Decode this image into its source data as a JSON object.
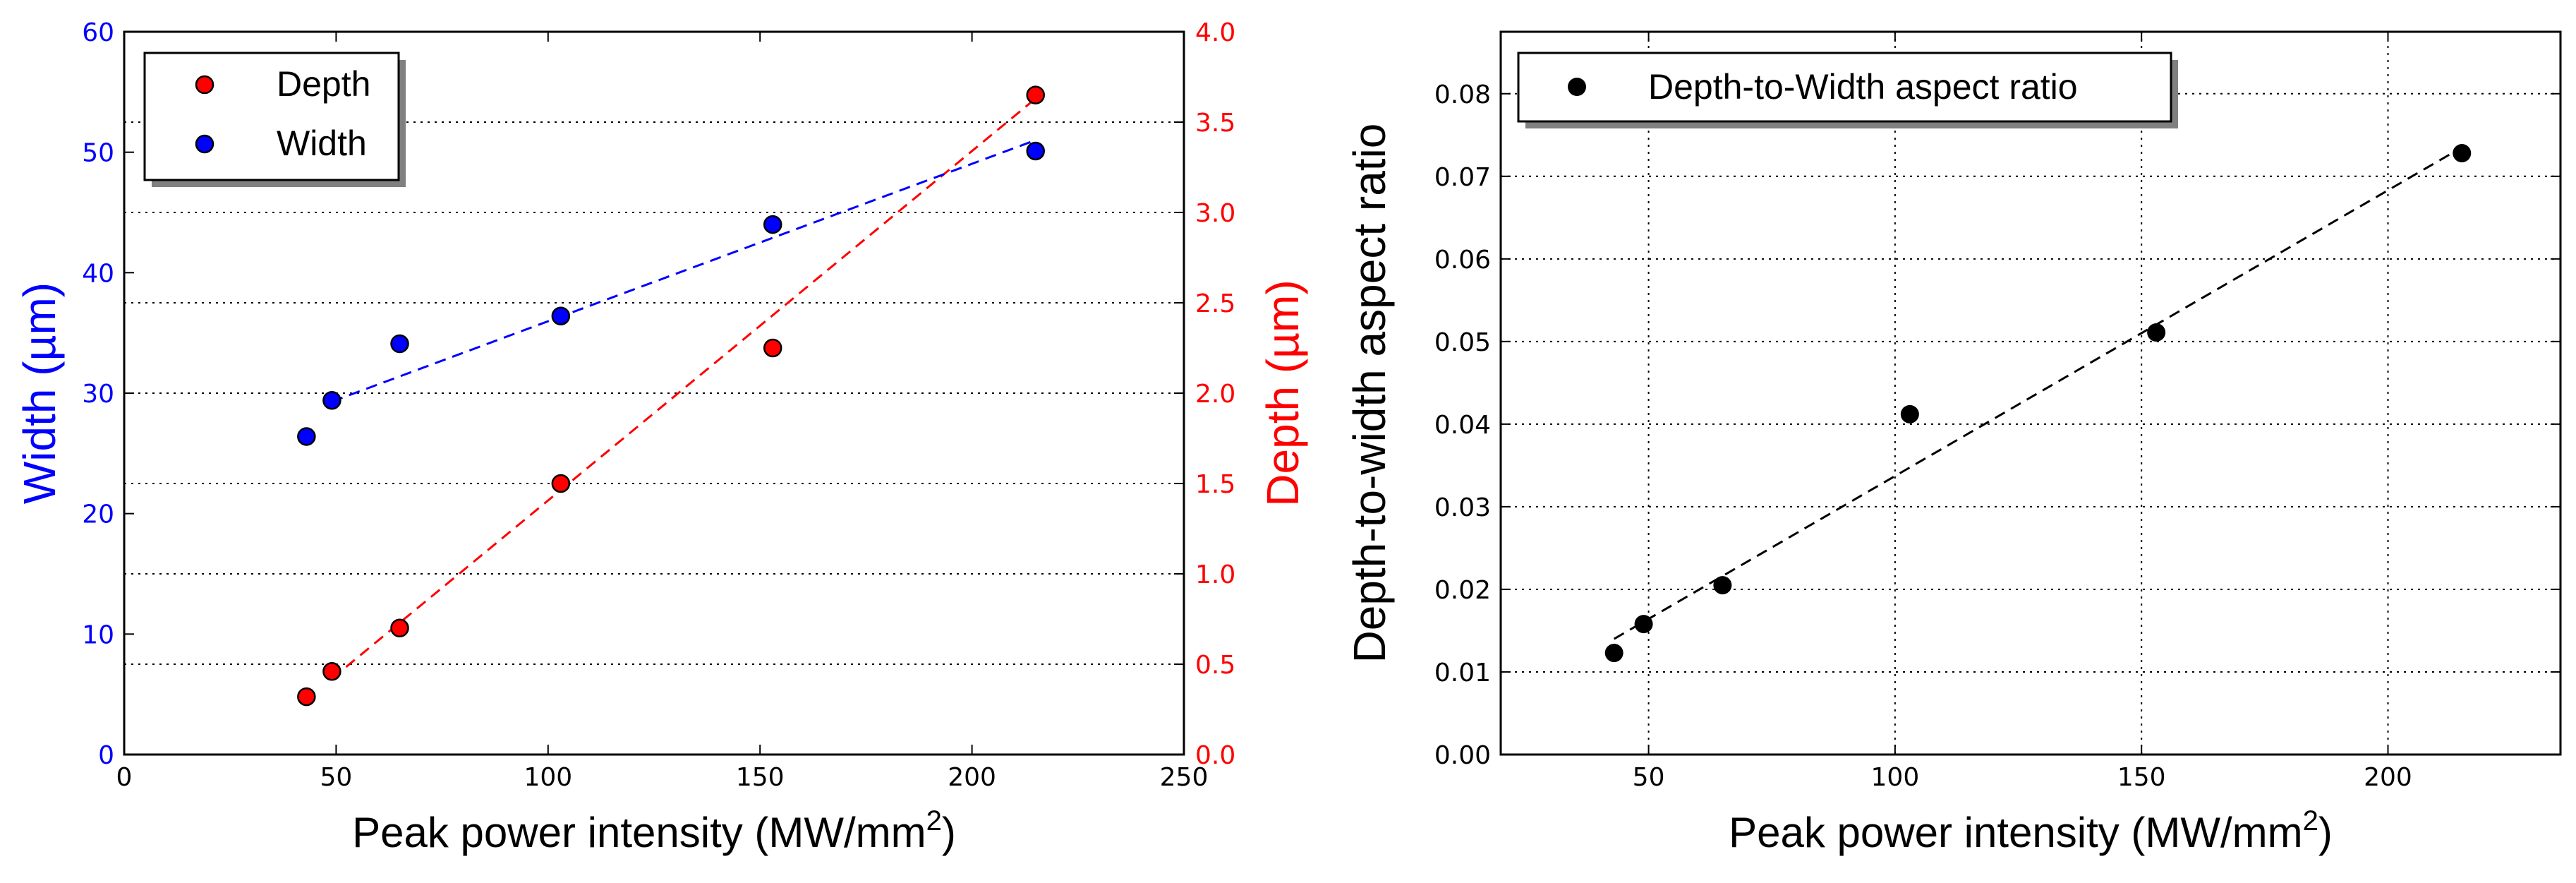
{
  "chart_data": [
    {
      "type": "scatter",
      "title": "",
      "xlabel": "Peak power intensity (MW/mm",
      "xlabel_sup": "2",
      "xlabel_close": ")",
      "ylabel": "Width (µm)",
      "ylabel_right": "Depth (µm)",
      "xlim": [
        0,
        250
      ],
      "ylim": [
        0,
        60
      ],
      "ylim_right": [
        0,
        4.0
      ],
      "x_ticks": [
        "0",
        "50",
        "100",
        "150",
        "200",
        "250"
      ],
      "y_ticks": [
        "0",
        "10",
        "20",
        "30",
        "40",
        "50",
        "60"
      ],
      "y_ticks_right": [
        "0.0",
        "0.5",
        "1.0",
        "1.5",
        "2.0",
        "2.5",
        "3.0",
        "3.5",
        "4.0"
      ],
      "grid": "horizontal dotted at right-axis ticks",
      "legend_position": "top-left",
      "left_axis_color": "#0000ff",
      "right_axis_color": "#ff0000",
      "series": [
        {
          "name": "Depth",
          "axis": "right",
          "color": "#ff0000",
          "x": [
            43,
            49,
            65,
            103,
            153,
            215
          ],
          "y": [
            0.32,
            0.46,
            0.7,
            1.5,
            2.25,
            3.65
          ],
          "fit": [
            [
              49,
              0.42
            ],
            [
              215,
              3.63
            ]
          ]
        },
        {
          "name": "Width",
          "axis": "left",
          "color": "#0000ff",
          "x": [
            43,
            49,
            65,
            103,
            153,
            215
          ],
          "y": [
            26.4,
            29.4,
            34.1,
            36.4,
            44.0,
            50.1
          ],
          "fit": [
            [
              49,
              29.3
            ],
            [
              215,
              51.0
            ]
          ]
        }
      ]
    },
    {
      "type": "scatter",
      "title": "",
      "xlabel": "Peak power intensity (MW/mm",
      "xlabel_sup": "2",
      "xlabel_close": ")",
      "ylabel": "Depth-to-width aspect ratio",
      "xlim": [
        20,
        235
      ],
      "ylim": [
        0,
        0.0875
      ],
      "x_ticks": [
        "50",
        "100",
        "150",
        "200"
      ],
      "x_tick_values": [
        50,
        100,
        150,
        200
      ],
      "y_ticks": [
        "0.00",
        "0.01",
        "0.02",
        "0.03",
        "0.04",
        "0.05",
        "0.06",
        "0.07",
        "0.08"
      ],
      "grid": "both dotted",
      "legend_position": "top-left",
      "series": [
        {
          "name": "Depth-to-Width aspect ratio",
          "color": "#000000",
          "x": [
            43,
            49,
            65,
            103,
            153,
            215
          ],
          "y": [
            0.0123,
            0.0158,
            0.0205,
            0.0412,
            0.0511,
            0.0728
          ],
          "fit": [
            [
              43,
              0.014
            ],
            [
              215,
              0.0735
            ]
          ]
        }
      ]
    }
  ]
}
